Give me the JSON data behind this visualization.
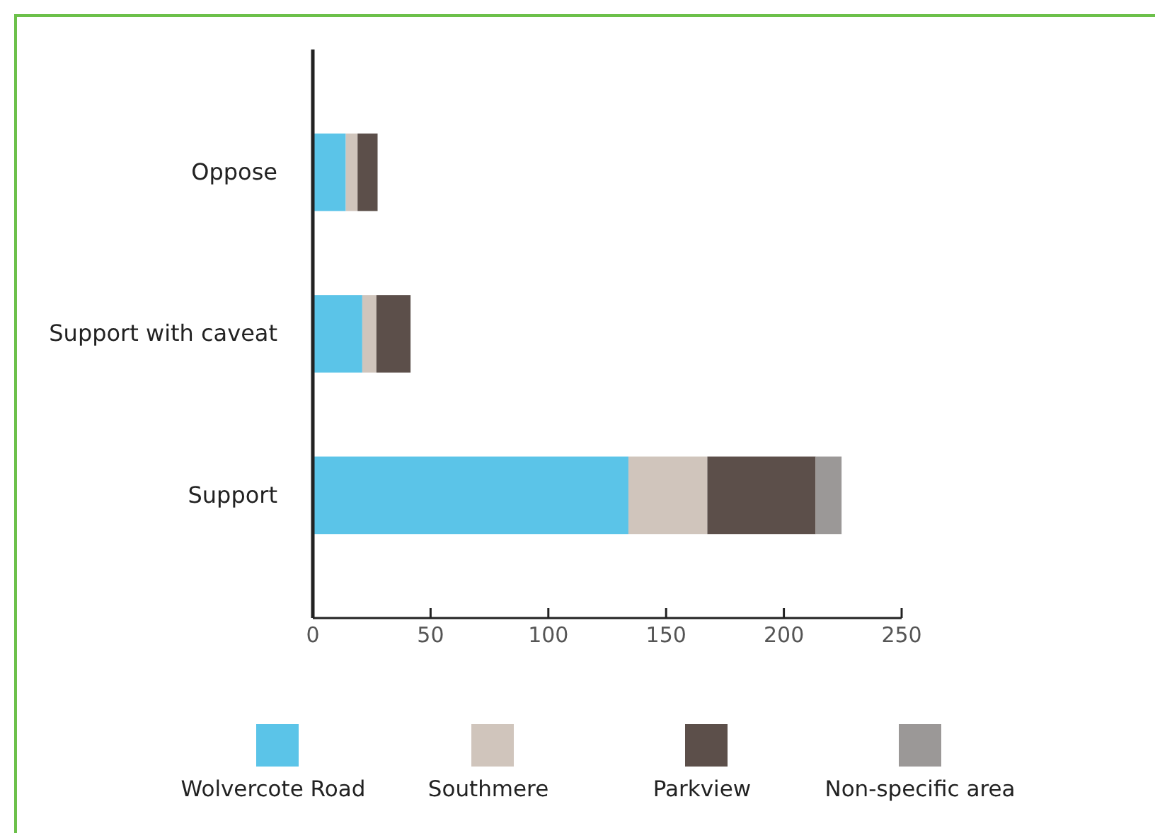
{
  "chart_data": {
    "type": "bar",
    "orientation": "horizontal",
    "stacked": true,
    "categories": [
      "Oppose",
      "Support with caveat",
      "Support"
    ],
    "series": [
      {
        "name": "Wolvercote Road",
        "color": "#5bc4e8",
        "values": [
          14,
          21,
          134
        ]
      },
      {
        "name": "Southmere",
        "color": "#d0c5bc",
        "values": [
          5,
          6,
          33.5
        ]
      },
      {
        "name": "Parkview",
        "color": "#5c4f4a",
        "values": [
          8.5,
          14.5,
          46
        ]
      },
      {
        "name": "Non-specific area",
        "color": "#9b9897",
        "values": [
          0,
          0,
          11
        ]
      }
    ],
    "xlim": [
      0,
      250
    ],
    "xticks": [
      0,
      50,
      100,
      150,
      200,
      250
    ],
    "grid": false,
    "legend": "bottom"
  }
}
